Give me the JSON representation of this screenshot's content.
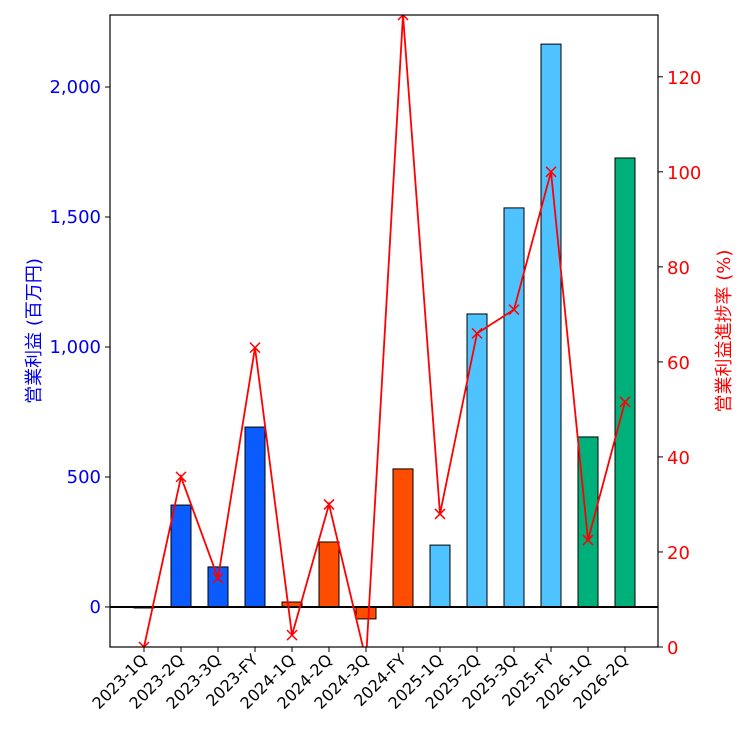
{
  "chart_data": {
    "type": "bar+line",
    "categories": [
      "2023-1Q",
      "2023-2Q",
      "2023-3Q",
      "2023-FY",
      "2024-1Q",
      "2024-2Q",
      "2024-3Q",
      "2024-FY",
      "2025-1Q",
      "2025-2Q",
      "2025-3Q",
      "2025-FY",
      "2026-1Q",
      "2026-2Q"
    ],
    "bar_series": {
      "name": "営業利益 (百万円)",
      "values": [
        -3,
        392,
        154,
        692,
        19,
        250,
        -46,
        531,
        238,
        1127,
        1535,
        2165,
        654,
        1727
      ],
      "colors": [
        "#0a5cff",
        "#0a5cff",
        "#0a5cff",
        "#0a5cff",
        "#ff4d00",
        "#ff4d00",
        "#ff4d00",
        "#ff4d00",
        "#4fc3ff",
        "#4fc3ff",
        "#4fc3ff",
        "#4fc3ff",
        "#00b07a",
        "#00b07a"
      ]
    },
    "line_series": {
      "name": "営業利益進捗率 (%)",
      "values": [
        0,
        35.8,
        14.5,
        63,
        2.5,
        30,
        -2.7,
        133,
        28,
        66,
        71,
        100,
        22.5,
        51.6
      ],
      "color": "#ff0000"
    },
    "ylabel_left": "営業利益 (百万円)",
    "ylabel_right": "営業利益進捗率 (%)",
    "ylim_left": [
      -154,
      2277
    ],
    "ylim_right": [
      0,
      133
    ],
    "yticks_left": [
      0,
      500,
      1000,
      1500,
      2000
    ],
    "ytick_labels_left": [
      "0",
      "500",
      "1,000",
      "1,500",
      "2,000"
    ],
    "yticks_right": [
      0,
      20,
      40,
      60,
      80,
      100,
      120
    ],
    "ytick_labels_right": [
      "0",
      "20",
      "40",
      "60",
      "80",
      "100",
      "120"
    ],
    "left_color": "#0000ee",
    "right_color": "#ff0000",
    "grid": false
  }
}
